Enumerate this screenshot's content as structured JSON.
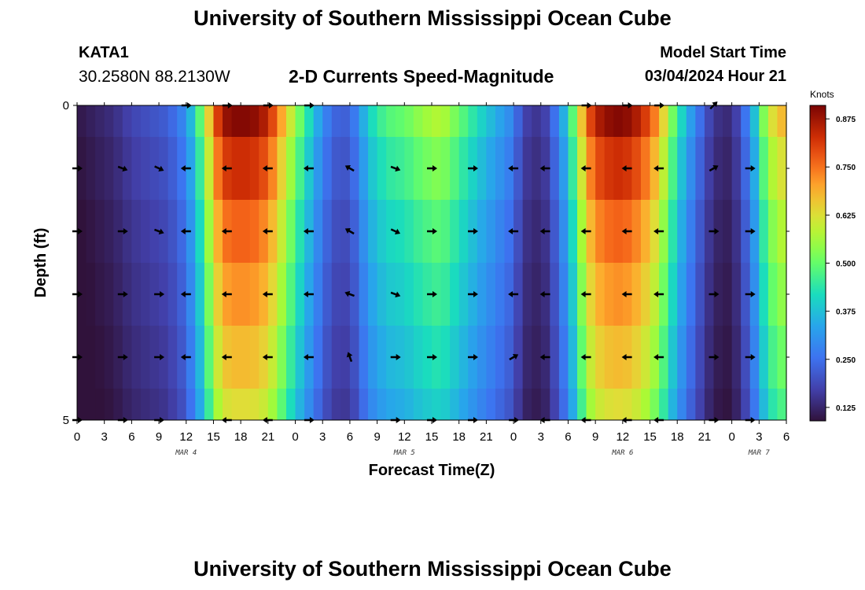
{
  "header": {
    "title": "University of Southern Mississippi Ocean Cube",
    "station_id": "KATA1",
    "station_coords": "30.2580N  88.2130W",
    "chart_title": "2-D Currents Speed-Magnitude",
    "model_label": "Model Start Time",
    "model_time": "03/04/2024 Hour 21"
  },
  "footer": {
    "title": "University of Southern Mississippi Ocean Cube"
  },
  "chart_data": {
    "type": "heatmap",
    "title": "2-D Currents Speed-Magnitude",
    "xlabel": "Forecast Time(Z)",
    "ylabel": "Depth (ft)",
    "x_tick_labels": [
      "0",
      "3",
      "6",
      "9",
      "12",
      "15",
      "18",
      "21",
      "0",
      "3",
      "6",
      "9",
      "12",
      "15",
      "18",
      "21",
      "0",
      "3",
      "6",
      "9",
      "12",
      "15",
      "18",
      "21",
      "0",
      "3",
      "6"
    ],
    "date_labels": [
      {
        "label": "MAR 4",
        "hour": 12
      },
      {
        "label": "MAR 5",
        "hour": 36
      },
      {
        "label": "MAR 6",
        "hour": 60
      },
      {
        "label": "MAR 7",
        "hour": 75
      }
    ],
    "x_range_hours": [
      0,
      78
    ],
    "y_tick_labels": [
      "0",
      "5"
    ],
    "y_range_ft": [
      0,
      5
    ],
    "colorbar": {
      "unit": "Knots",
      "min": 0.09,
      "max": 0.91,
      "tick_labels": [
        "0.875",
        "0.750",
        "0.625",
        "0.500",
        "0.375",
        "0.250",
        "0.125"
      ],
      "tick_values": [
        0.875,
        0.75,
        0.625,
        0.5,
        0.375,
        0.25,
        0.125
      ]
    },
    "depth_levels": [
      0,
      1,
      2,
      3,
      4,
      5
    ],
    "profile_hours": [
      0,
      2,
      4,
      6,
      8,
      10,
      12,
      14,
      15,
      16,
      17,
      18,
      19,
      20,
      21,
      22,
      24,
      26,
      27,
      28,
      29,
      30,
      31,
      32,
      34,
      36,
      38,
      40,
      42,
      44,
      46,
      48,
      49,
      50,
      51,
      52,
      54,
      56,
      57,
      58,
      59,
      60,
      61,
      62,
      63,
      64,
      66,
      68,
      70,
      72,
      74,
      76,
      78
    ],
    "speed_profile_knots": [
      0.1,
      0.12,
      0.14,
      0.18,
      0.2,
      0.22,
      0.3,
      0.55,
      0.75,
      0.87,
      0.9,
      0.9,
      0.9,
      0.88,
      0.84,
      0.75,
      0.55,
      0.38,
      0.3,
      0.24,
      0.22,
      0.23,
      0.3,
      0.4,
      0.48,
      0.5,
      0.55,
      0.58,
      0.5,
      0.42,
      0.35,
      0.28,
      0.18,
      0.16,
      0.15,
      0.2,
      0.4,
      0.75,
      0.85,
      0.88,
      0.9,
      0.9,
      0.88,
      0.84,
      0.78,
      0.7,
      0.45,
      0.28,
      0.15,
      0.13,
      0.3,
      0.6,
      0.7
    ],
    "depth_factors": [
      1.0,
      0.92,
      0.85,
      0.8,
      0.75,
      0.7
    ],
    "vectors": {
      "hours": [
        0,
        5,
        9,
        12,
        16.5,
        21,
        25.5,
        30,
        35,
        39,
        43.5,
        48,
        51.5,
        56,
        60.5,
        64,
        70,
        74
      ],
      "rows": [
        [
          null,
          null,
          null,
          0,
          0,
          0,
          0,
          null,
          null,
          null,
          null,
          null,
          null,
          0,
          0,
          0,
          45,
          null
        ],
        [
          0,
          340,
          335,
          180,
          180,
          180,
          180,
          150,
          340,
          0,
          0,
          180,
          180,
          180,
          180,
          180,
          30,
          0
        ],
        [
          0,
          0,
          340,
          180,
          180,
          180,
          180,
          150,
          335,
          0,
          0,
          180,
          180,
          180,
          180,
          180,
          0,
          0
        ],
        [
          0,
          0,
          0,
          180,
          180,
          180,
          180,
          160,
          340,
          0,
          0,
          180,
          180,
          180,
          180,
          180,
          0,
          0
        ],
        [
          0,
          0,
          0,
          180,
          180,
          180,
          180,
          110,
          0,
          0,
          0,
          30,
          180,
          180,
          180,
          180,
          0,
          0
        ],
        [
          0,
          0,
          0,
          null,
          180,
          180,
          0,
          null,
          0,
          0,
          0,
          0,
          180,
          180,
          180,
          180,
          0,
          0
        ]
      ]
    }
  }
}
